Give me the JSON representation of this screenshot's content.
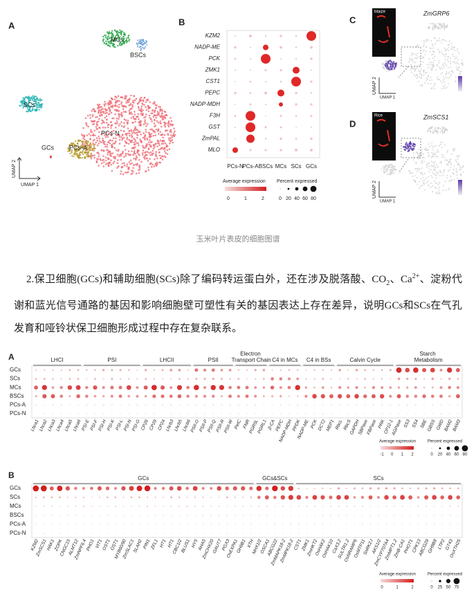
{
  "figure1": {
    "panel_a": {
      "label": "A",
      "clusters": [
        "MCs",
        "BSCs",
        "SCs",
        "GCs",
        "PCs-A",
        "PCs-N"
      ],
      "x_axis": "UMAP 1",
      "y_axis": "UMAP 2"
    },
    "panel_b": {
      "label": "B",
      "genes": [
        "KZM2",
        "NADP-ME",
        "PCK",
        "ZMK1",
        "CST1",
        "PEPC",
        "NADP-MDH",
        "F3H",
        "GST",
        "ZmPAL",
        "MLO"
      ],
      "cell_types": [
        "PCs-N",
        "PCs-A",
        "BSCs",
        "MCs",
        "SCs",
        "GCs"
      ],
      "color_legend": {
        "title": "Average expression",
        "ticks": [
          0,
          1,
          2
        ]
      },
      "size_legend": {
        "title": "Percent expressed",
        "ticks": [
          0,
          20,
          40,
          60,
          80
        ]
      }
    },
    "panel_c": {
      "label": "C",
      "species": "Maize",
      "gene": "ZmGRP6",
      "x_axis": "UMAP 1",
      "y_axis": "UMAP 2"
    },
    "panel_d": {
      "label": "D",
      "species": "Rice",
      "gene": "ZmSCS1",
      "x_axis": "UMAP 1",
      "y_axis": "UMAP 2"
    },
    "caption": "玉米叶片表皮的细胞图谱"
  },
  "paragraph": {
    "number": "2.",
    "part1": "保卫细胞(GCs)和辅助细胞(SCs)除了编码转运蛋白外，还在涉及脱落酸、CO",
    "sub": "2",
    "part2": "、Ca",
    "sup": "2+",
    "part3": "、淀粉代谢和蓝光信号通路的基因和影响细胞壁可塑性有关的基因表达上存在差异，说明GCs和SCs在气孔发育和哑铃状保卫细胞形成过程中存在复杂联系。"
  },
  "figure2": {
    "panel_a": {
      "label": "A",
      "rows": [
        "GCs",
        "SCs",
        "MCs",
        "BSCs",
        "PCs-A",
        "PCs-N"
      ],
      "groups": [
        {
          "name": "LHCI",
          "genes": [
            "Lhca1",
            "Lhca2",
            "Lhca3",
            "Lhca4",
            "Lhca5",
            "Lhca6"
          ]
        },
        {
          "name": "PSI",
          "genes": [
            "PSI-E",
            "PSI-F",
            "PSI-H",
            "PSI-K",
            "PSI-L",
            "PSI-N",
            "PSI-O"
          ]
        },
        {
          "name": "LHCII",
          "genes": [
            "CP26",
            "CP29",
            "CP24",
            "Lhcb3",
            "Lhcb5",
            "Lhcb6"
          ]
        },
        {
          "name": "PSII",
          "genes": [
            "PSII-O",
            "PSII-P",
            "PSII-Q",
            "PSII-R",
            "PSII-W"
          ]
        },
        {
          "name": "Electron Transport Chain",
          "genes": [
            "PetC",
            "FNR",
            "PGR5L",
            "PGRL1"
          ]
        },
        {
          "name": "C4 in MCs",
          "genes": [
            "β-CA",
            "PEPC",
            "NADP-MDH",
            "PPDK"
          ]
        },
        {
          "name": "C4 in BSs",
          "genes": [
            "NADP-ME",
            "PCK",
            "DCT2",
            "MEP1"
          ]
        },
        {
          "name": "Calvin Cycle",
          "genes": [
            "RbcL",
            "RbcS",
            "GAPDH",
            "SBPase",
            "FBPase",
            "PRK",
            "CP12-1"
          ]
        },
        {
          "name": "Starch Metabolism",
          "genes": [
            "AGPase",
            "SS3",
            "SS4",
            "SBE",
            "GBSS",
            "GWD",
            "BAM2",
            "BAM3"
          ]
        }
      ],
      "color_legend": {
        "title": "Average expression",
        "ticks": [
          -1,
          0,
          1,
          2
        ]
      },
      "size_legend": {
        "title": "Percent expressed",
        "ticks": [
          0,
          20,
          40,
          60,
          80
        ]
      }
    },
    "panel_b": {
      "label": "B",
      "rows": [
        "GCs",
        "SCs",
        "MCs",
        "BSCs",
        "PCs-A",
        "PCs-N"
      ],
      "groups": [
        {
          "name": "GCs",
          "genes": [
            "KZM2",
            "ZmSCS1",
            "HAK1",
            "ZOPK",
            "CNGC15",
            "ALMT12",
            "ZmNPF6.4",
            "PHO1",
            "VIT1",
            "OST1",
            "OST1",
            "MYB60/90",
            "ZmSLAC1",
            "SLAH2",
            "PIN1",
            "ZFL1",
            "HT1",
            "HT1",
            "CBC1/2",
            "BLUS1",
            "HY5",
            "AHA5",
            "ZmCHX20",
            "GAUT7",
            "PGX3",
            "OsEXPA1",
            "GH9B1",
            "XTH"
          ]
        },
        {
          "name": "GCs&SCs",
          "genes": [
            "NHX1/2",
            "OSCA1",
            "ABCG22",
            "ZmMAPK18-2",
            "ZmMPK18-2"
          ]
        },
        {
          "name": "SCs",
          "genes": [
            "CST1",
            "ZMK1",
            "ZmHKT2",
            "OsHAK2",
            "OsHAK10",
            "CaX3.2",
            "SULTR1.2",
            "OsNRAMP6",
            "OsMTP11",
            "SnRK2.I",
            "AKS1/2",
            "ZmCYP707A4",
            "ZmMPT1.2",
            "ZmB-CA1",
            "PHOT1",
            "CPK13",
            "ABCG29",
            "GH9B8",
            "LTP2",
            "GT43",
            "OsXTH25"
          ]
        }
      ],
      "color_legend": {
        "title": "Average expression",
        "ticks": [
          0,
          1,
          2
        ]
      },
      "size_legend": {
        "title": "Percent expressed",
        "ticks": [
          0,
          25,
          50,
          75
        ]
      }
    }
  }
}
